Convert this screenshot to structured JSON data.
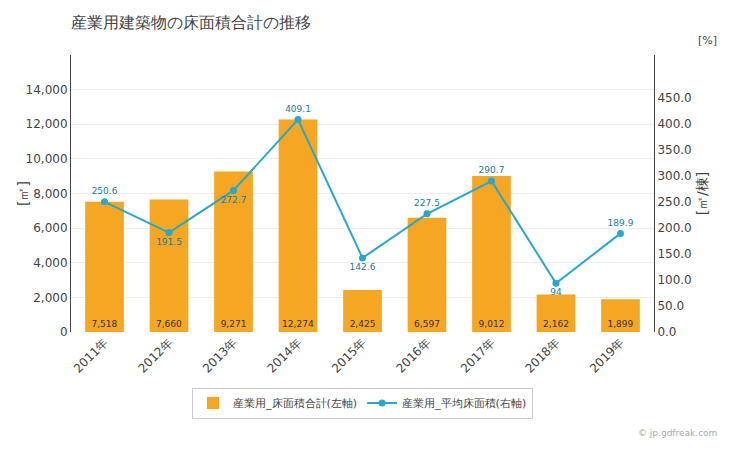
{
  "chart_data": {
    "type": "bar",
    "title": "産業用建築物の床面積合計の推移",
    "categories": [
      "2011年",
      "2012年",
      "2013年",
      "2014年",
      "2015年",
      "2016年",
      "2017年",
      "2018年",
      "2019年"
    ],
    "ylabel": "[㎡]",
    "y2label": "[㎡/棟]",
    "annotations": [
      "[%]",
      "© jp.gdfreak.com"
    ],
    "series": [
      {
        "name": "産業用_床面積合計(左軸)",
        "type": "bar",
        "color": "#f5a623",
        "values": [
          7518,
          7660,
          9271,
          12274,
          2425,
          6597,
          9012,
          2162,
          1899
        ],
        "value_labels": [
          "7,518",
          "7,660",
          "9,271",
          "12,274",
          "2,425",
          "6,597",
          "9,012",
          "2,162",
          "1,899"
        ]
      },
      {
        "name": "産業用_平均床面積(右軸)",
        "type": "line",
        "axis": "y2",
        "color": "#29a8cb",
        "marker": "circle",
        "values": [
          250.6,
          191.5,
          272.7,
          409.1,
          142.6,
          227.5,
          290.7,
          94,
          189.9
        ]
      }
    ],
    "ylim": [
      0,
      16000
    ],
    "yticks": [
      0,
      {
        "value": 2000,
        "label": "2,000"
      },
      {
        "value": 4000,
        "label": "4,000"
      },
      {
        "value": 6000,
        "label": "6,000"
      },
      {
        "value": 8000,
        "label": "8,000"
      },
      {
        "value": 10000,
        "label": "10,000"
      },
      {
        "value": 12000,
        "label": "12,000"
      },
      {
        "value": 14000,
        "label": "14,000"
      }
    ],
    "y2lim": [
      0,
      533.33
    ],
    "y2ticks": [
      {
        "value": 0,
        "label": "0.0"
      },
      {
        "value": 50,
        "label": "50.0"
      },
      {
        "value": 100,
        "label": "100.0"
      },
      {
        "value": 150,
        "label": "150.0"
      },
      {
        "value": 200,
        "label": "200.0"
      },
      {
        "value": 250,
        "label": "250.0"
      },
      {
        "value": 300,
        "label": "300.0"
      },
      {
        "value": 350,
        "label": "350.0"
      },
      {
        "value": 400,
        "label": "400.0"
      },
      {
        "value": 450,
        "label": "450.0"
      }
    ],
    "grid": true,
    "legend": "bottom",
    "data_labels": true
  }
}
